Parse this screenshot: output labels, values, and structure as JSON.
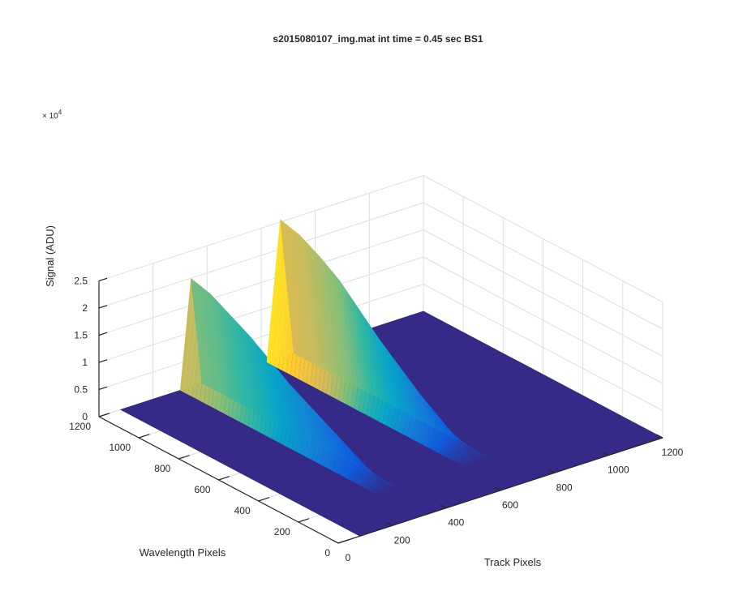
{
  "chart_data": {
    "type": "surface",
    "title": "s2015080107_img.mat int time = 0.45 sec   BS1",
    "xlabel": "Track Pixels",
    "ylabel": "Wavelength Pixels",
    "zlabel": "Signal (ADU)",
    "z_exponent_label": "× 10",
    "z_exponent_power": "4",
    "xlim": [
      0,
      1200
    ],
    "ylim": [
      0,
      1200
    ],
    "zlim": [
      0,
      25000
    ],
    "x_ticks": [
      "0",
      "200",
      "400",
      "600",
      "800",
      "1000",
      "1200"
    ],
    "y_ticks": [
      "0",
      "200",
      "400",
      "600",
      "800",
      "1000",
      "1200"
    ],
    "z_ticks": [
      "0",
      "0.5",
      "1",
      "1.5",
      "2",
      "2.5"
    ],
    "grid": true,
    "colormap": [
      "#352a87",
      "#0f5cdd",
      "#1481d6",
      "#06a4ca",
      "#2eb7a4",
      "#87bf77",
      "#d1bb59",
      "#fec832",
      "#f9fb0e"
    ],
    "series": [
      {
        "track_range": [
          300,
          380
        ],
        "wavelength_profile": [
          [
            0,
            0
          ],
          [
            200,
            0
          ],
          [
            300,
            2000
          ],
          [
            400,
            4000
          ],
          [
            500,
            6000
          ],
          [
            600,
            8000
          ],
          [
            700,
            10000
          ],
          [
            800,
            12500
          ],
          [
            900,
            15000
          ],
          [
            1000,
            17000
          ],
          [
            1100,
            19000
          ],
          [
            1200,
            20000
          ]
        ]
      },
      {
        "track_range": [
          620,
          720
        ],
        "wavelength_profile": [
          [
            0,
            0
          ],
          [
            200,
            0
          ],
          [
            300,
            2000
          ],
          [
            400,
            4500
          ],
          [
            500,
            7000
          ],
          [
            600,
            10000
          ],
          [
            700,
            13000
          ],
          [
            800,
            16500
          ],
          [
            900,
            20000
          ],
          [
            1000,
            22500
          ],
          [
            1100,
            24500
          ],
          [
            1200,
            25500
          ]
        ]
      }
    ]
  }
}
